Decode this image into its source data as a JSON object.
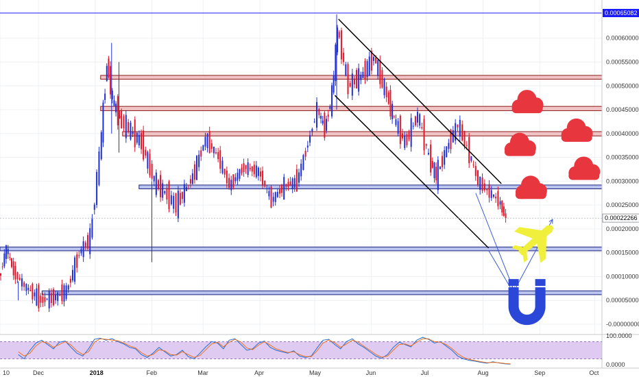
{
  "chart_data": [
    {
      "type": "candlestick",
      "x_range": [
        "2017-11-10",
        "2018-10-05"
      ],
      "ylim": [
        -0.0,
        0.00066
      ],
      "grid": true,
      "x_ticks": [
        "10",
        "Dec",
        "2018",
        "Feb",
        "Mar",
        "Apr",
        "May",
        "Jun",
        "Jul",
        "Aug",
        "Sep",
        "Oct"
      ],
      "y_ticks": [
        "0.00060000",
        "0.00055000",
        "0.00050000",
        "0.00045000",
        "0.00040000",
        "0.00035000",
        "0.00030000",
        "0.00025000",
        "0.00020000",
        "0.00015000",
        "0.00010000",
        "0.00005000",
        "-0.00000000"
      ],
      "price_tags": [
        {
          "label": "0.00065082",
          "value": 0.00065082,
          "color": "#1a1aff"
        },
        {
          "label": "0.00022266",
          "value": 0.00022266,
          "color": "#1a1aff"
        }
      ],
      "price_path": [
        [
          "2017-11-10",
          9.5e-05
        ],
        [
          "2017-11-14",
          0.00016
        ],
        [
          "2017-11-18",
          0.00011
        ],
        [
          "2017-11-24",
          8e-05
        ],
        [
          "2017-12-03",
          5e-05
        ],
        [
          "2017-12-10",
          5.5e-05
        ],
        [
          "2017-12-17",
          7e-05
        ],
        [
          "2017-12-24",
          0.00015
        ],
        [
          "2017-12-30",
          0.00018
        ],
        [
          "2018-01-04",
          0.00035
        ],
        [
          "2018-01-08",
          0.00055
        ],
        [
          "2018-01-11",
          0.00047
        ],
        [
          "2018-01-15",
          0.00043
        ],
        [
          "2018-01-20",
          0.00041
        ],
        [
          "2018-01-27",
          0.00038
        ],
        [
          "2018-02-03",
          0.0003
        ],
        [
          "2018-02-10",
          0.00027
        ],
        [
          "2018-02-15",
          0.00025
        ],
        [
          "2018-02-24",
          0.00031
        ],
        [
          "2018-03-03",
          0.00039
        ],
        [
          "2018-03-10",
          0.00035
        ],
        [
          "2018-03-16",
          0.00029
        ],
        [
          "2018-03-24",
          0.00033
        ],
        [
          "2018-04-01",
          0.00032
        ],
        [
          "2018-04-08",
          0.00026
        ],
        [
          "2018-04-15",
          0.00029
        ],
        [
          "2018-04-22",
          0.0003
        ],
        [
          "2018-04-28",
          0.00038
        ],
        [
          "2018-05-03",
          0.00045
        ],
        [
          "2018-05-07",
          0.00041
        ],
        [
          "2018-05-11",
          0.00048
        ],
        [
          "2018-05-14",
          0.00062
        ],
        [
          "2018-05-20",
          0.0005
        ],
        [
          "2018-05-27",
          0.00052
        ],
        [
          "2018-06-03",
          0.00056
        ],
        [
          "2018-06-10",
          0.00048
        ],
        [
          "2018-06-14",
          0.00043
        ],
        [
          "2018-06-20",
          0.00038
        ],
        [
          "2018-06-27",
          0.00044
        ],
        [
          "2018-07-03",
          0.00035
        ],
        [
          "2018-07-07",
          0.00031
        ],
        [
          "2018-07-14",
          0.00038
        ],
        [
          "2018-07-19",
          0.00042
        ],
        [
          "2018-07-24",
          0.00037
        ],
        [
          "2018-07-30",
          0.0003
        ],
        [
          "2018-08-04",
          0.00028
        ],
        [
          "2018-08-10",
          0.00026
        ],
        [
          "2018-08-14",
          0.00022266
        ]
      ],
      "wicks": [
        {
          "x": "2017-11-20",
          "low": 5e-05,
          "high": 9e-05
        },
        {
          "x": "2018-01-10",
          "low": 0.0004,
          "high": 0.00059
        },
        {
          "x": "2018-01-14",
          "low": 0.00036,
          "high": 0.00055
        },
        {
          "x": "2018-02-01",
          "low": 0.00013,
          "high": 0.0003
        },
        {
          "x": "2018-05-13",
          "low": 0.00045,
          "high": 0.00065
        }
      ],
      "zones": [
        {
          "name": "resistance-1",
          "from": 0.000514,
          "to": 0.000522,
          "start": "2018-01-04",
          "color": "#f0c4c4",
          "border": "#8b1a1a"
        },
        {
          "name": "resistance-2",
          "from": 0.000448,
          "to": 0.000457,
          "start": "2018-01-04",
          "color": "#f0c4c4",
          "border": "#8b1a1a"
        },
        {
          "name": "resistance-3",
          "from": 0.000395,
          "to": 0.000404,
          "start": "2018-01-16",
          "color": "#f0c4c4",
          "border": "#8b1a1a"
        },
        {
          "name": "support-1",
          "from": 0.000284,
          "to": 0.000292,
          "start": "2018-01-25",
          "color": "#b9c3ee",
          "border": "#1a237e"
        },
        {
          "name": "support-2",
          "from": 0.000154,
          "to": 0.000162,
          "start": "2017-11-10",
          "color": "#b9c3ee",
          "border": "#1a237e"
        },
        {
          "name": "support-3",
          "from": 6.2e-05,
          "to": 7e-05,
          "start": "2017-12-03",
          "color": "#b9c3ee",
          "border": "#1a237e"
        }
      ],
      "trendlines": [
        {
          "name": "channel-top",
          "from": [
            "2018-05-14",
            0.00064
          ],
          "to": [
            "2018-08-11",
            0.000295
          ]
        },
        {
          "name": "channel-bottom",
          "from": [
            "2018-05-12",
            0.00048
          ],
          "to": [
            "2018-08-04",
            0.00016
          ]
        }
      ],
      "projection_arrows": [
        {
          "name": "arrow-to-magnet-a",
          "from": [
            "2018-07-28",
            0.000275
          ],
          "to": [
            "2018-08-18",
            7e-05
          ]
        },
        {
          "name": "arrow-from-magnet",
          "from": [
            "2018-08-18",
            7e-05
          ],
          "to": [
            "2018-09-08",
            0.00022
          ]
        },
        {
          "name": "arrow-to-magnet-b",
          "from": [
            "2018-08-04",
            0.000155
          ],
          "to": [
            "2018-08-17",
            7e-05
          ]
        }
      ],
      "cloud_icons": [
        {
          "x": "2018-08-25",
          "y": 0.00046
        },
        {
          "x": "2018-08-21",
          "y": 0.00037
        },
        {
          "x": "2018-09-21",
          "y": 0.0004
        },
        {
          "x": "2018-09-25",
          "y": 0.00032
        },
        {
          "x": "2018-08-27",
          "y": 0.00028
        }
      ],
      "plane_icon": {
        "x": "2018-08-31",
        "y": 0.00018
      },
      "magnet_icon": {
        "x": "2018-08-25",
        "y": 3e-05
      }
    },
    {
      "type": "line",
      "ylim": [
        0,
        100
      ],
      "y_ticks": [
        "100.0000",
        "0.0000"
      ],
      "band": [
        20,
        80
      ],
      "band_color": "#c9a9e8",
      "series": [
        {
          "color": "#1e6fd9",
          "values": [
            35,
            20,
            50,
            75,
            85,
            70,
            55,
            78,
            82,
            60,
            40,
            30,
            55,
            88,
            92,
            85,
            90,
            80,
            72,
            60,
            55,
            35,
            25,
            40,
            60,
            45,
            30,
            35,
            50,
            28,
            20,
            40,
            62,
            80,
            75,
            55,
            85,
            90,
            70,
            50,
            55,
            75,
            82,
            60,
            50,
            45,
            40,
            48,
            30,
            25,
            30,
            58,
            85,
            88,
            70,
            55,
            80,
            90,
            72,
            60,
            45,
            30,
            22,
            35,
            60,
            78,
            70,
            62,
            85,
            95,
            88,
            75,
            80,
            65,
            50,
            30,
            20,
            15,
            12,
            8,
            5,
            10,
            6,
            3,
            2
          ]
        },
        {
          "color": "#f2711c",
          "values": [
            45,
            30,
            40,
            65,
            80,
            75,
            60,
            70,
            80,
            68,
            48,
            35,
            45,
            78,
            90,
            88,
            85,
            83,
            75,
            65,
            58,
            42,
            30,
            35,
            52,
            48,
            35,
            33,
            45,
            35,
            25,
            32,
            52,
            72,
            78,
            62,
            78,
            88,
            78,
            58,
            52,
            68,
            80,
            68,
            55,
            48,
            42,
            45,
            35,
            28,
            28,
            48,
            75,
            86,
            76,
            60,
            72,
            85,
            78,
            64,
            50,
            36,
            26,
            30,
            50,
            70,
            72,
            65,
            78,
            90,
            90,
            80,
            78,
            70,
            56,
            38,
            25,
            18,
            14,
            10,
            7,
            8,
            7,
            4,
            3
          ]
        }
      ]
    }
  ]
}
